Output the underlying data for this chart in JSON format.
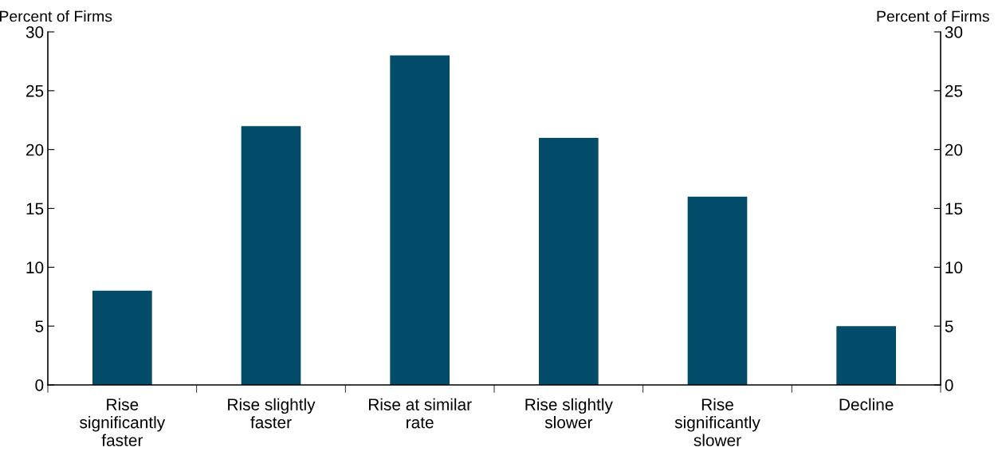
{
  "chart_data": {
    "type": "bar",
    "categories": [
      "Rise\nsignificantly\nfaster",
      "Rise slightly\nfaster",
      "Rise at similar\nrate",
      "Rise slightly\nslower",
      "Rise\nsignificantly\nslower",
      "Decline"
    ],
    "values": [
      8,
      22,
      28,
      21,
      16,
      5
    ],
    "color": "#024b69",
    "ylabel": "Percent of Firms",
    "y2label": "Percent of Firms",
    "ylim": [
      0,
      30
    ],
    "yticks": [
      0,
      5,
      10,
      15,
      20,
      25,
      30
    ],
    "y2lim": [
      0,
      30
    ],
    "y2ticks": [
      0,
      5,
      10,
      15,
      20,
      25,
      30
    ],
    "grid": false,
    "legend": false
  }
}
